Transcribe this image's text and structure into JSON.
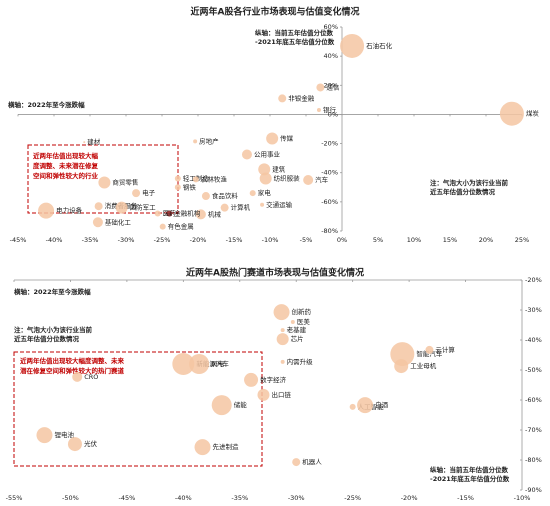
{
  "chart_data": [
    {
      "type": "scatter",
      "title": "近两年A股各行业市场表现与估值变化情况",
      "annotations": [
        [
          "横轴：2022年至今涨跌幅"
        ],
        [
          "纵轴：当前五年估值分位数",
          "-2021年底五年估值分位数"
        ],
        [
          "注：气泡大小为该行业当前",
          "近五年估值分位数情况"
        ]
      ],
      "box_note": [
        "近两年估值出现较大幅",
        "度调整、未来潜在修复",
        "空间和弹性较大的行业"
      ],
      "labels": [
        "石油石化",
        "煤炭",
        "通信",
        "非银金融",
        "银行",
        "传媒",
        "公用事业",
        "房地产",
        "建材",
        "轻工制造",
        "农林牧渔",
        "建筑",
        "纺织服装",
        "汽车",
        "家电",
        "交通运输",
        "钢铁",
        "食品饮料",
        "计算机",
        "机械",
        "金融机构",
        "有色金属",
        "医药",
        "商贸零售",
        "电子",
        "消费者服务",
        "国防军工",
        "电力设备",
        "基础化工"
      ],
      "x": [
        1.4,
        23.6,
        -3,
        -8.3,
        -3.2,
        -9.7,
        -13.2,
        -20.4,
        -35.8,
        -22.8,
        -20.3,
        -10.8,
        -10.6,
        -4.7,
        -12.4,
        -11.1,
        -22.8,
        -18.9,
        -16.3,
        -19.6,
        -24,
        -24.9,
        -25.6,
        -33,
        -28.6,
        -33.8,
        -30.6,
        -41.1,
        -33.9
      ],
      "y": [
        47,
        0.5,
        18.5,
        11,
        3,
        -16.5,
        -27.5,
        -18.5,
        -19,
        -44,
        -44.6,
        -37.7,
        -44,
        -45,
        -54,
        -62,
        -50,
        -56,
        -64,
        -68.6,
        -68,
        -77,
        -68,
        -46.7,
        -54,
        -63,
        -64,
        -66,
        -74
      ],
      "sizes": [
        12,
        12,
        4,
        4,
        2,
        6,
        5,
        2,
        1,
        3,
        3,
        6,
        6,
        5,
        3,
        2,
        3,
        4,
        4,
        5,
        3,
        3,
        3,
        6,
        4,
        4,
        6,
        8,
        5
      ],
      "colors": [
        "#f5c6a2",
        "#f5c6a2",
        "#f5c6a2",
        "#f5c6a2",
        "#f5c6a2",
        "#f5c6a2",
        "#f5c6a2",
        "#f5c6a2",
        "#f5c6a2",
        "#f5c6a2",
        "#f5c6a2",
        "#f5c6a2",
        "#f5c6a2",
        "#f5c6a2",
        "#f5c6a2",
        "#f5c6a2",
        "#f5c6a2",
        "#f5c6a2",
        "#f5c6a2",
        "#f5c6a2",
        "#8b1a1a",
        "#f5c6a2",
        "#f5c6a2",
        "#f5c6a2",
        "#f5c6a2",
        "#f5c6a2",
        "#f5c6a2",
        "#f5c6a2",
        "#f5c6a2"
      ],
      "xlim": [
        -45,
        25
      ],
      "xticks": [
        {
          "value": -45,
          "label": "-45%"
        },
        {
          "value": -40,
          "label": "-40%"
        },
        {
          "value": -35,
          "label": "-35%"
        },
        {
          "value": -30,
          "label": "-30%"
        },
        {
          "value": -25,
          "label": "-25%"
        },
        {
          "value": -20,
          "label": "-20%"
        },
        {
          "value": -15,
          "label": "-15%"
        },
        {
          "value": -10,
          "label": "-10%"
        },
        {
          "value": -5,
          "label": "-5%"
        },
        {
          "value": 0,
          "label": "0%"
        },
        {
          "value": 5,
          "label": "5%"
        },
        {
          "value": 10,
          "label": "10%"
        },
        {
          "value": 15,
          "label": "15%"
        },
        {
          "value": 20,
          "label": "20%"
        },
        {
          "value": 25,
          "label": "25%"
        }
      ],
      "ylim": [
        -80,
        60
      ],
      "yticks": [
        {
          "value": 60,
          "label": "60%"
        },
        {
          "value": 40,
          "label": "40%"
        },
        {
          "value": 20,
          "label": "20%"
        },
        {
          "value": 0,
          "label": "0%"
        },
        {
          "value": -20,
          "label": "-20%"
        },
        {
          "value": -40,
          "label": "-40%"
        },
        {
          "value": -60,
          "label": "-60%"
        },
        {
          "value": -80,
          "label": "-80%"
        }
      ]
    },
    {
      "type": "scatter",
      "title": "近两年A股热门赛道市场表现与估值变化情况",
      "annotations": [
        [
          "横轴：2022年至今涨跌幅"
        ],
        [
          "注：气泡大小为该行业当前",
          "近五年估值分位数情况"
        ],
        [
          "纵轴：当前五年估值分位数",
          "-2021年底五年估值分位数"
        ]
      ],
      "box_note": [
        "近两年估值出现较大幅度调整、未来",
        "潜在修复空间和弹性较大的热门赛道"
      ],
      "labels": [
        "创新药",
        "医美",
        "老基建",
        "芯片",
        "内需升级",
        "智能汽车",
        "云计算",
        "工业母机",
        "CRO",
        "新能源汽车",
        "风电",
        "数字经济",
        "出口链",
        "储能",
        "人工智能",
        "白酒",
        "锂电池",
        "光伏",
        "先进制造",
        "机器人"
      ],
      "x": [
        -31.3,
        -30.3,
        -31.2,
        -31.2,
        -31.2,
        -20.6,
        -18.2,
        -20.7,
        -49.4,
        -40,
        -38.6,
        -34,
        -32.9,
        -36.6,
        -25,
        -23.9,
        -52.3,
        -49.6,
        -38.3,
        -30
      ],
      "y": [
        -30.7,
        -34,
        -36.7,
        -39.7,
        -47.3,
        -44.7,
        -43.3,
        -48.7,
        -52.3,
        -48,
        -48,
        -53.3,
        -58.3,
        -61.7,
        -62.3,
        -61.7,
        -71.7,
        -74.7,
        -75.7,
        -80.7
      ],
      "sizes": [
        8,
        2,
        2,
        6,
        2,
        12,
        4,
        7,
        5,
        11,
        10,
        7,
        6,
        10,
        3,
        8,
        8,
        7,
        8,
        4
      ],
      "color": "#f5c6a2",
      "xlim": [
        -55,
        -10
      ],
      "xticks": [
        {
          "value": -55,
          "label": "-55%"
        },
        {
          "value": -50,
          "label": "-50%"
        },
        {
          "value": -45,
          "label": "-45%"
        },
        {
          "value": -40,
          "label": "-40%"
        },
        {
          "value": -35,
          "label": "-35%"
        },
        {
          "value": -30,
          "label": "-30%"
        },
        {
          "value": -25,
          "label": "-25%"
        },
        {
          "value": -20,
          "label": "-20%"
        },
        {
          "value": -15,
          "label": "-15%"
        },
        {
          "value": -10,
          "label": "-10%"
        }
      ],
      "ylim": [
        -90,
        -20
      ],
      "yticks": [
        {
          "value": -20,
          "label": "-20%"
        },
        {
          "value": -30,
          "label": "-30%"
        },
        {
          "value": -40,
          "label": "-40%"
        },
        {
          "value": -50,
          "label": "-50%"
        },
        {
          "value": -60,
          "label": "-60%"
        },
        {
          "value": -70,
          "label": "-70%"
        },
        {
          "value": -80,
          "label": "-80%"
        },
        {
          "value": -90,
          "label": "-90%"
        }
      ]
    }
  ]
}
